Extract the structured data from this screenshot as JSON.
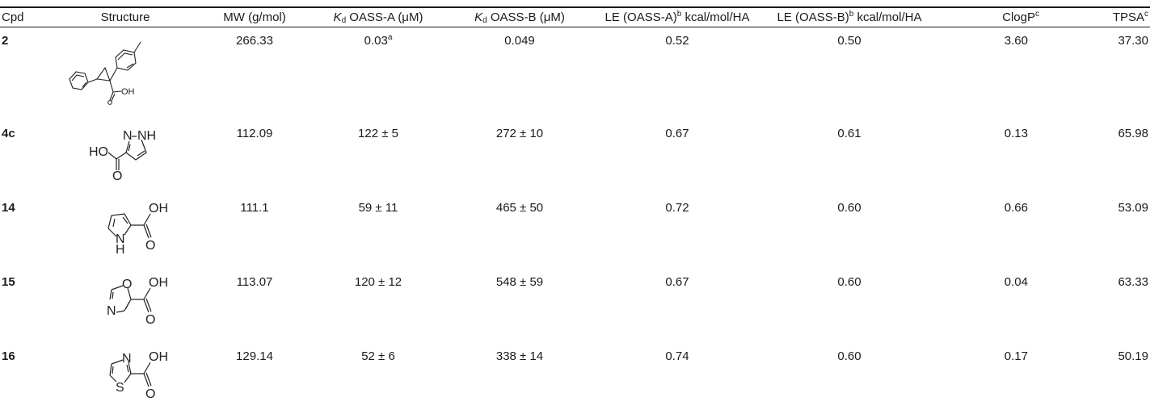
{
  "table": {
    "caption": "",
    "headers": {
      "cpd": "Cpd",
      "structure": "Structure",
      "mw": "MW (g/mol)",
      "kd_a_symbol": "K",
      "kd_a_sub": "d",
      "kd_a_label": " OASS-A (μM)",
      "kd_b_symbol": "K",
      "kd_b_sub": "d",
      "kd_b_label": " OASS-B (μM)",
      "le_a_label": "LE (OASS-A)",
      "le_a_sup": "b",
      "le_a_unit": " kcal/mol/HA",
      "le_b_label": "LE (OASS-B)",
      "le_b_sup": "b",
      "le_b_unit": " kcal/mol/HA",
      "clogp_label": "ClogP",
      "clogp_sup": "c",
      "tpsa_label": "TPSA",
      "tpsa_sup": "c"
    },
    "rows": [
      {
        "cpd": "2",
        "structure_icon": "cyclopropane-carboxylic-acid-structure",
        "structure_labels": {
          "oh": "OH"
        },
        "mw": "266.33",
        "kd_a": "0.03",
        "kd_a_sup": "a",
        "kd_b": "0.049",
        "le_a": "0.52",
        "le_b": "0.50",
        "clogp": "3.60",
        "tpsa": "37.30"
      },
      {
        "cpd": "4c",
        "structure_icon": "pyrazole-carboxylic-acid-structure",
        "structure_labels": {
          "ho": "HO",
          "n": "N",
          "nh": "NH",
          "o": "O"
        },
        "mw": "112.09",
        "kd_a": "122 ± 5",
        "kd_a_sup": "",
        "kd_b": "272 ± 10",
        "le_a": "0.67",
        "le_b": "0.61",
        "clogp": "0.13",
        "tpsa": "65.98"
      },
      {
        "cpd": "14",
        "structure_icon": "pyrrole-carboxylic-acid-structure",
        "structure_labels": {
          "oh": "OH",
          "n": "N",
          "h": "H",
          "o": "O"
        },
        "mw": "111.1",
        "kd_a": "59 ± 11",
        "kd_a_sup": "",
        "kd_b": "465 ± 50",
        "le_a": "0.72",
        "le_b": "0.60",
        "clogp": "0.66",
        "tpsa": "53.09"
      },
      {
        "cpd": "15",
        "structure_icon": "oxazole-carboxylic-acid-structure",
        "structure_labels": {
          "oh": "OH",
          "ring_o": "O",
          "n": "N",
          "o": "O"
        },
        "mw": "113.07",
        "kd_a": "120 ± 12",
        "kd_a_sup": "",
        "kd_b": "548 ± 59",
        "le_a": "0.67",
        "le_b": "0.60",
        "clogp": "0.04",
        "tpsa": "63.33"
      },
      {
        "cpd": "16",
        "structure_icon": "thiazole-carboxylic-acid-structure",
        "structure_labels": {
          "oh": "OH",
          "n": "N",
          "s": "S",
          "o": "O"
        },
        "mw": "129.14",
        "kd_a": "52 ± 6",
        "kd_a_sup": "",
        "kd_b": "338 ± 14",
        "le_a": "0.74",
        "le_b": "0.60",
        "clogp": "0.17",
        "tpsa": "50.19"
      }
    ]
  }
}
